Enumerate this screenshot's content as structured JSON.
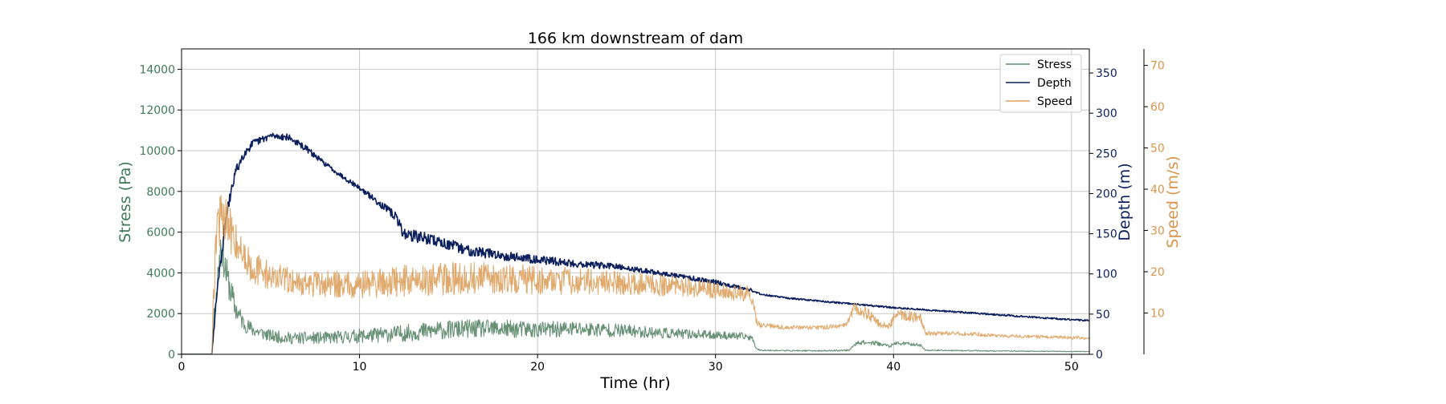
{
  "chart_data": {
    "type": "line",
    "title": "166 km downstream of dam",
    "xlabel": "Time (hr)",
    "xlim": [
      0,
      51
    ],
    "xticks": [
      0,
      10,
      20,
      30,
      40,
      50
    ],
    "grid": true,
    "legend_position": "top-right",
    "axes": [
      {
        "id": "stress",
        "label": "Stress (Pa)",
        "side": "left",
        "ylim": [
          0,
          15000
        ],
        "ticks": [
          0,
          2000,
          4000,
          6000,
          8000,
          10000,
          12000,
          14000
        ],
        "color": "#3f7a5a"
      },
      {
        "id": "depth",
        "label": "Depth (m)",
        "side": "right",
        "ylim": [
          0,
          380
        ],
        "ticks": [
          0,
          50,
          100,
          150,
          200,
          250,
          300,
          350
        ],
        "color": "#0b1f5c"
      },
      {
        "id": "speed",
        "label": "Speed (m/s)",
        "side": "right-offset",
        "ylim": [
          0,
          74
        ],
        "ticks": [
          10,
          20,
          30,
          40,
          50,
          60,
          70
        ],
        "color": "#d9954a"
      }
    ],
    "series": [
      {
        "name": "Stress",
        "axis": "stress",
        "color": "#5f8a6e",
        "x": [
          0,
          1.7,
          1.8,
          2.0,
          2.2,
          2.5,
          3,
          3.5,
          4,
          5,
          6,
          8,
          10,
          12,
          14,
          16,
          18,
          20,
          22,
          24,
          26,
          28,
          30,
          32,
          32.3,
          32.5,
          34,
          36,
          37.5,
          38,
          39,
          39.8,
          40.2,
          41,
          41.5,
          41.8,
          44,
          46,
          48,
          50,
          51
        ],
        "y": [
          0,
          0,
          1500,
          3500,
          5500,
          4000,
          2300,
          1500,
          1200,
          900,
          800,
          800,
          900,
          1000,
          1150,
          1250,
          1250,
          1200,
          1250,
          1200,
          1100,
          1000,
          950,
          850,
          300,
          200,
          180,
          170,
          200,
          600,
          550,
          400,
          550,
          500,
          450,
          200,
          180,
          160,
          150,
          140,
          130
        ],
        "noise": [
          0,
          0,
          400,
          800,
          900,
          900,
          600,
          400,
          350,
          300,
          300,
          300,
          350,
          400,
          450,
          450,
          450,
          400,
          400,
          350,
          300,
          250,
          200,
          180,
          40,
          30,
          30,
          30,
          40,
          120,
          100,
          80,
          100,
          80,
          70,
          30,
          25,
          25,
          20,
          20,
          20
        ]
      },
      {
        "name": "Depth",
        "axis": "depth",
        "color": "#0b1f5c",
        "x": [
          0,
          1.7,
          2.0,
          2.5,
          3,
          3.5,
          4,
          5,
          6,
          7,
          8,
          9,
          10,
          11,
          12,
          12.5,
          14,
          16,
          18,
          20,
          22,
          24,
          26,
          28,
          30,
          32,
          32.5,
          34,
          36,
          38,
          40,
          42,
          44,
          46,
          48,
          50,
          51
        ],
        "y": [
          0,
          0,
          80,
          170,
          225,
          250,
          262,
          272,
          270,
          256,
          238,
          222,
          207,
          190,
          172,
          150,
          143,
          130,
          123,
          118,
          113,
          110,
          104,
          97,
          90,
          80,
          75,
          70,
          66,
          62,
          58,
          55,
          52,
          49,
          46,
          43,
          42
        ],
        "noise": [
          0,
          0,
          8,
          8,
          7,
          6,
          5,
          4,
          4,
          4,
          3,
          3,
          3,
          4,
          6,
          8,
          7,
          7,
          6,
          5,
          5,
          4,
          3,
          3,
          3,
          2,
          1,
          1,
          1,
          1,
          1,
          1,
          1,
          1,
          1,
          1,
          1
        ]
      },
      {
        "name": "Speed",
        "axis": "speed",
        "color": "#dda15e",
        "x": [
          0,
          1.7,
          1.8,
          2.0,
          2.3,
          2.6,
          3,
          3.5,
          4,
          5,
          7,
          10,
          13,
          16,
          20,
          24,
          28,
          30,
          32,
          32.3,
          32.5,
          34,
          36,
          37.3,
          37.8,
          38.5,
          39.3,
          39.8,
          40.2,
          41,
          41.5,
          41.8,
          44,
          46,
          48,
          50,
          51
        ],
        "y": [
          0,
          0,
          15,
          33,
          32,
          31,
          28,
          24,
          21,
          19,
          17,
          17,
          18,
          18.5,
          18,
          17.5,
          16.5,
          15.5,
          14.5,
          8,
          7,
          6.5,
          6.5,
          7,
          11,
          10,
          7,
          7,
          10,
          9,
          9,
          5,
          5,
          4.5,
          4.3,
          4,
          4
        ],
        "noise": [
          0,
          0,
          5,
          8,
          7,
          6,
          5,
          4,
          4,
          3.5,
          3,
          3.5,
          4,
          4,
          3.5,
          3,
          2.5,
          2,
          2,
          0.8,
          0.6,
          0.5,
          0.5,
          0.6,
          1.5,
          1.5,
          0.8,
          0.8,
          1.5,
          1.3,
          1.2,
          0.5,
          0.5,
          0.4,
          0.4,
          0.4,
          0.4
        ]
      }
    ]
  }
}
